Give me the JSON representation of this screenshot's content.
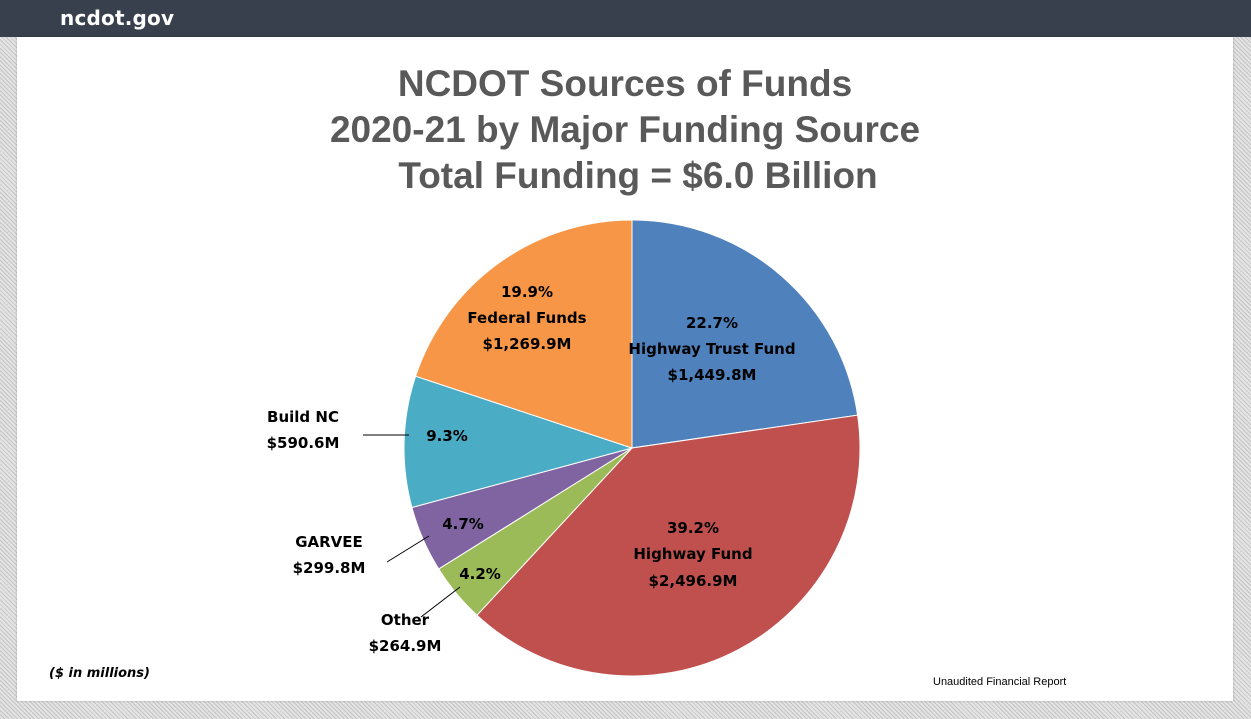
{
  "site": {
    "name": "ncdot.gov"
  },
  "chart_data": {
    "type": "pie",
    "title": "NCDOT Sources of Funds",
    "subtitle": "2020-21 by Major Funding Source",
    "total_label": "Total Funding = $6.0 Billion",
    "slices": [
      {
        "name": "Highway Trust Fund",
        "percent": 22.7,
        "percent_label": "22.7%",
        "amount_label": "$1,449.8M",
        "value": 1449.8,
        "color": "#4f81bd",
        "label_placement": "inside"
      },
      {
        "name": "Highway Fund",
        "percent": 39.2,
        "percent_label": "39.2%",
        "amount_label": "$2,496.9M",
        "value": 2496.9,
        "color": "#c0504d",
        "label_placement": "inside"
      },
      {
        "name": "Other",
        "percent": 4.2,
        "percent_label": "4.2%",
        "amount_label": "$264.9M",
        "value": 264.9,
        "color": "#9bbb59",
        "label_placement": "outside"
      },
      {
        "name": "GARVEE",
        "percent": 4.7,
        "percent_label": "4.7%",
        "amount_label": "$299.8M",
        "value": 299.8,
        "color": "#8064a2",
        "label_placement": "outside"
      },
      {
        "name": "Build NC",
        "percent": 9.3,
        "percent_label": "9.3%",
        "amount_label": "$590.6M",
        "value": 590.6,
        "color": "#4bacc6",
        "label_placement": "outside"
      },
      {
        "name": "Federal Funds",
        "percent": 19.9,
        "percent_label": "19.9%",
        "amount_label": "$1,269.9M",
        "value": 1269.9,
        "color": "#f79646",
        "label_placement": "inside"
      }
    ],
    "footnote": "($ in millions)",
    "source_note": "Unaudited Financial Report"
  }
}
